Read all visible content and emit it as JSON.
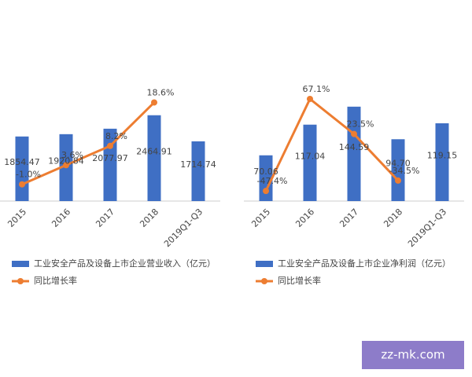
{
  "chart_data": [
    {
      "type": "bar",
      "categories": [
        "2015",
        "2016",
        "2017",
        "2018",
        "2019Q1-Q3"
      ],
      "series": [
        {
          "name": "工业安全产品及设备上市企业营业收入（亿元）",
          "color": "#3f6fc4",
          "values": [
            1854.47,
            1920.84,
            2077.97,
            2464.91,
            1714.74
          ],
          "value_labels": [
            "1854.47",
            "1920.84",
            "2077.97",
            "2464.91",
            "1714.74"
          ]
        },
        {
          "name": "同比增长率",
          "type": "line",
          "axis": "y2",
          "color": "#ed7d31",
          "values": [
            -1.0,
            3.6,
            8.2,
            18.6,
            null
          ],
          "value_labels": [
            "-1.0%",
            "3.6%",
            "8.2%",
            "18.6%",
            null
          ]
        }
      ],
      "ylim": [
        0,
        3000
      ],
      "y2lim": [
        -5,
        20
      ]
    },
    {
      "type": "bar",
      "categories": [
        "2015",
        "2016",
        "2017",
        "2018",
        "2019Q1-Q3"
      ],
      "series": [
        {
          "name": "工业安全产品及设备上市企业净利润（亿元）",
          "color": "#3f6fc4",
          "values": [
            70.06,
            117.04,
            144.59,
            94.7,
            119.15
          ],
          "value_labels": [
            "70.06",
            "117.04",
            "144.59",
            "94.70",
            "119.15"
          ]
        },
        {
          "name": "同比增长率",
          "type": "line",
          "axis": "y2",
          "color": "#ed7d31",
          "values": [
            -47.4,
            67.1,
            23.5,
            -34.5,
            null
          ],
          "value_labels": [
            "-47.4%",
            "67.1%",
            "23.5%",
            "-34.5%",
            null
          ]
        }
      ],
      "ylim": [
        0,
        160
      ],
      "y2lim": [
        -60,
        70
      ]
    }
  ],
  "watermark": "zz-mk.com"
}
